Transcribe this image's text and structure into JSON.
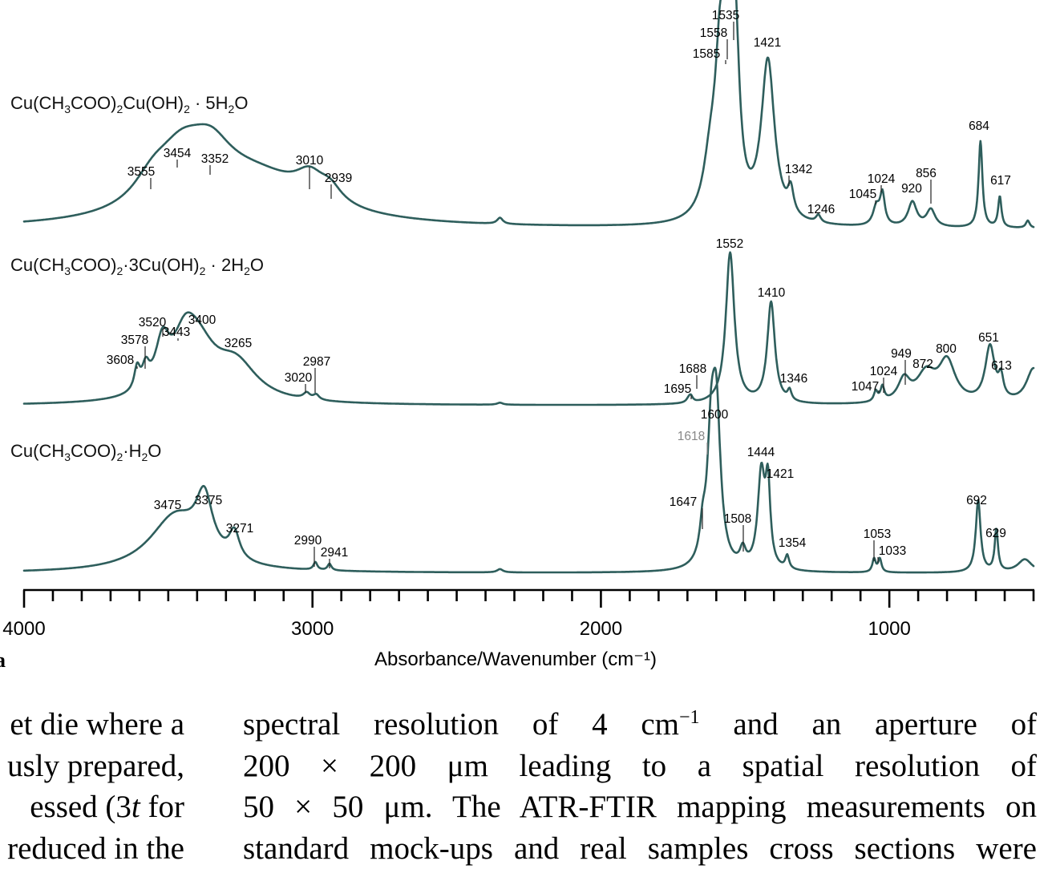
{
  "chart_data": {
    "type": "line",
    "xlabel": "Absorbance/Wavenumber (cm⁻¹)",
    "panel_label": "a",
    "x_range": [
      4000,
      500
    ],
    "x_reversed": true,
    "x_ticks": [
      4000,
      3000,
      2000,
      1000
    ],
    "series": [
      {
        "name": "Cu(CH3COO)2Cu(OH)2 · 5H2O",
        "title_parts": {
          "base": "Cu(CH",
          "s1": "3",
          "m1": "COO)",
          "s2": "2",
          "m2": "Cu(OH)",
          "s3": "2",
          "m3": " · 5H",
          "s4": "2",
          "m4": "O"
        },
        "baseline": 0.0,
        "peaks": [
          {
            "x": 3555,
            "h": 0.18,
            "w": 80
          },
          {
            "x": 3454,
            "h": 0.42,
            "w": 110
          },
          {
            "x": 3352,
            "h": 0.3,
            "w": 90
          },
          {
            "x": 3200,
            "h": 0.38,
            "w": 250
          },
          {
            "x": 3010,
            "h": 0.18,
            "w": 60
          },
          {
            "x": 2939,
            "h": 0.12,
            "w": 50
          },
          {
            "x": 2350,
            "h": 0.05,
            "w": 12
          },
          {
            "x": 1620,
            "h": 0.4,
            "w": 30
          },
          {
            "x": 1585,
            "h": 1.25,
            "w": 22
          },
          {
            "x": 1558,
            "h": 1.1,
            "w": 14
          },
          {
            "x": 1535,
            "h": 1.4,
            "w": 18
          },
          {
            "x": 1421,
            "h": 1.3,
            "w": 28
          },
          {
            "x": 1342,
            "h": 0.2,
            "w": 12
          },
          {
            "x": 1246,
            "h": 0.06,
            "w": 10
          },
          {
            "x": 1045,
            "h": 0.15,
            "w": 14
          },
          {
            "x": 1024,
            "h": 0.25,
            "w": 10
          },
          {
            "x": 920,
            "h": 0.2,
            "w": 18
          },
          {
            "x": 856,
            "h": 0.14,
            "w": 18
          },
          {
            "x": 684,
            "h": 0.7,
            "w": 8
          },
          {
            "x": 617,
            "h": 0.25,
            "w": 7
          },
          {
            "x": 520,
            "h": 0.06,
            "w": 8
          }
        ],
        "labels": [
          {
            "x": 3555,
            "text": "3555"
          },
          {
            "x": 3454,
            "text": "3454"
          },
          {
            "x": 3352,
            "text": "3352"
          },
          {
            "x": 3010,
            "text": "3010"
          },
          {
            "x": 2939,
            "text": "2939"
          },
          {
            "x": 1585,
            "text": "1585"
          },
          {
            "x": 1558,
            "text": "1558"
          },
          {
            "x": 1535,
            "text": "1535"
          },
          {
            "x": 1421,
            "text": "1421"
          },
          {
            "x": 1342,
            "text": "1342"
          },
          {
            "x": 1246,
            "text": "1246"
          },
          {
            "x": 1045,
            "text": "1045"
          },
          {
            "x": 1024,
            "text": "1024"
          },
          {
            "x": 920,
            "text": "920"
          },
          {
            "x": 856,
            "text": "856"
          },
          {
            "x": 684,
            "text": "684"
          },
          {
            "x": 617,
            "text": "617"
          }
        ]
      },
      {
        "name": "Cu(CH3COO)2·3Cu(OH)2 · 2H2O",
        "title_parts": {
          "base": "Cu(CH",
          "s1": "3",
          "m1": "COO)",
          "s2": "2",
          "m2": "·3Cu(OH)",
          "s3": "2",
          "m3": " · 2H",
          "s4": "2",
          "m4": "O"
        },
        "baseline": 0.0,
        "peaks": [
          {
            "x": 3608,
            "h": 0.22,
            "w": 12
          },
          {
            "x": 3578,
            "h": 0.2,
            "w": 15
          },
          {
            "x": 3520,
            "h": 0.45,
            "w": 30
          },
          {
            "x": 3443,
            "h": 0.38,
            "w": 50
          },
          {
            "x": 3400,
            "h": 0.5,
            "w": 80
          },
          {
            "x": 3265,
            "h": 0.35,
            "w": 90
          },
          {
            "x": 3020,
            "h": 0.06,
            "w": 14
          },
          {
            "x": 2987,
            "h": 0.05,
            "w": 12
          },
          {
            "x": 2350,
            "h": 0.02,
            "w": 12
          },
          {
            "x": 1695,
            "h": 0.04,
            "w": 10
          },
          {
            "x": 1688,
            "h": 0.05,
            "w": 8
          },
          {
            "x": 1552,
            "h": 1.5,
            "w": 18
          },
          {
            "x": 1410,
            "h": 1.0,
            "w": 16
          },
          {
            "x": 1346,
            "h": 0.1,
            "w": 8
          },
          {
            "x": 1047,
            "h": 0.1,
            "w": 8
          },
          {
            "x": 1024,
            "h": 0.14,
            "w": 8
          },
          {
            "x": 949,
            "h": 0.22,
            "w": 25
          },
          {
            "x": 872,
            "h": 0.28,
            "w": 40
          },
          {
            "x": 800,
            "h": 0.4,
            "w": 35
          },
          {
            "x": 651,
            "h": 0.55,
            "w": 20
          },
          {
            "x": 613,
            "h": 0.2,
            "w": 10
          },
          {
            "x": 500,
            "h": 0.35,
            "w": 30
          }
        ],
        "labels": [
          {
            "x": 3608,
            "text": "3608"
          },
          {
            "x": 3578,
            "text": "3578"
          },
          {
            "x": 3520,
            "text": "3520"
          },
          {
            "x": 3443,
            "text": "3443"
          },
          {
            "x": 3400,
            "text": "3400"
          },
          {
            "x": 3265,
            "text": "3265"
          },
          {
            "x": 3020,
            "text": "3020"
          },
          {
            "x": 2987,
            "text": "2987"
          },
          {
            "x": 1695,
            "text": "1695"
          },
          {
            "x": 1688,
            "text": "1688"
          },
          {
            "x": 1552,
            "text": "1552"
          },
          {
            "x": 1410,
            "text": "1410"
          },
          {
            "x": 1346,
            "text": "1346"
          },
          {
            "x": 1047,
            "text": "1047"
          },
          {
            "x": 1024,
            "text": "1024"
          },
          {
            "x": 949,
            "text": "949"
          },
          {
            "x": 872,
            "text": "872"
          },
          {
            "x": 800,
            "text": "800"
          },
          {
            "x": 651,
            "text": "651"
          },
          {
            "x": 613,
            "text": "613"
          }
        ]
      },
      {
        "name": "Cu(CH3COO)2·H2O",
        "title_parts": {
          "base": "Cu(CH",
          "s1": "3",
          "m1": "COO)",
          "s2": "2",
          "m2": "·H",
          "s3": "2",
          "m3": "O",
          "s4": "",
          "m4": ""
        },
        "baseline": 0.0,
        "peaks": [
          {
            "x": 3475,
            "h": 0.5,
            "w": 110
          },
          {
            "x": 3375,
            "h": 0.5,
            "w": 35
          },
          {
            "x": 3271,
            "h": 0.25,
            "w": 22
          },
          {
            "x": 2990,
            "h": 0.07,
            "w": 8
          },
          {
            "x": 2941,
            "h": 0.06,
            "w": 8
          },
          {
            "x": 2350,
            "h": 0.03,
            "w": 12
          },
          {
            "x": 1647,
            "h": 0.25,
            "w": 12
          },
          {
            "x": 1618,
            "h": 0.95,
            "w": 16
          },
          {
            "x": 1600,
            "h": 1.35,
            "w": 18
          },
          {
            "x": 1508,
            "h": 0.15,
            "w": 12
          },
          {
            "x": 1444,
            "h": 0.85,
            "w": 15
          },
          {
            "x": 1421,
            "h": 0.7,
            "w": 10
          },
          {
            "x": 1354,
            "h": 0.12,
            "w": 8
          },
          {
            "x": 1053,
            "h": 0.12,
            "w": 7
          },
          {
            "x": 1033,
            "h": 0.12,
            "w": 7
          },
          {
            "x": 692,
            "h": 0.65,
            "w": 10
          },
          {
            "x": 629,
            "h": 0.38,
            "w": 7
          },
          {
            "x": 530,
            "h": 0.12,
            "w": 30
          }
        ],
        "labels": [
          {
            "x": 3475,
            "text": "3475"
          },
          {
            "x": 3375,
            "text": "3375"
          },
          {
            "x": 3271,
            "text": "3271"
          },
          {
            "x": 2990,
            "text": "2990"
          },
          {
            "x": 2941,
            "text": "2941"
          },
          {
            "x": 1647,
            "text": "1647"
          },
          {
            "x": 1618,
            "text": "1618"
          },
          {
            "x": 1600,
            "text": "1600"
          },
          {
            "x": 1508,
            "text": "1508"
          },
          {
            "x": 1444,
            "text": "1444"
          },
          {
            "x": 1421,
            "text": "1421"
          },
          {
            "x": 1354,
            "text": "1354"
          },
          {
            "x": 1053,
            "text": "1053"
          },
          {
            "x": 1033,
            "text": "1033"
          },
          {
            "x": 692,
            "text": "692"
          },
          {
            "x": 629,
            "text": "629"
          }
        ]
      }
    ]
  },
  "body_text": {
    "left": [
      "et die where a",
      "usly prepared,",
      "essed (3t for",
      "reduced in the"
    ],
    "right": {
      "l1_a": "spectral",
      "l1_b": "resolution",
      "l1_c": "of",
      "l1_d": "4 cm",
      "l1_sup": "−1",
      "l1_e": "and",
      "l1_f": "an",
      "l1_g": "aperture",
      "l1_h": "of",
      "l2": [
        "200 × 200 μm",
        "leading",
        "to",
        "a",
        "spatial",
        "resolution",
        "of"
      ],
      "l3": "50 × 50 μm. The ATR-FTIR mapping measurements on",
      "l4": "standard mock-ups and real samples cross sections were"
    }
  },
  "colors": {
    "spectrum": "#2e5e5c"
  }
}
